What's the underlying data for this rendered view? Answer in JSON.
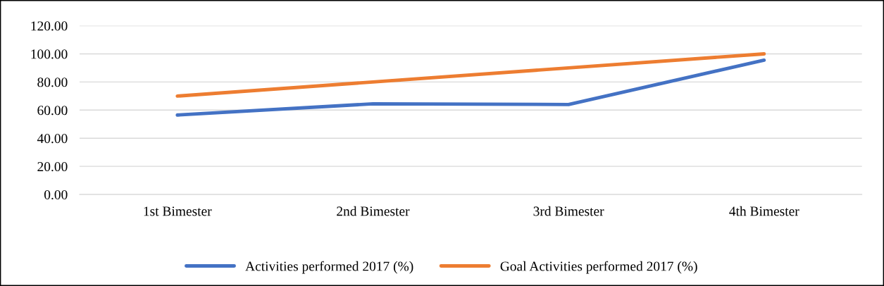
{
  "chart_data": {
    "type": "line",
    "categories": [
      "1st Bimester",
      "2nd Bimester",
      "3rd Bimester",
      "4th Bimester"
    ],
    "series": [
      {
        "name": "Activities performed 2017 (%)",
        "color": "#4472c4",
        "values": [
          56.5,
          64.5,
          64.0,
          95.5
        ]
      },
      {
        "name": "Goal Activities performed 2017 (%)",
        "color": "#ed7d31",
        "values": [
          70,
          80,
          90,
          100
        ]
      }
    ],
    "ylim": [
      0,
      120
    ],
    "yticks": [
      {
        "value": 0,
        "label": "0.00"
      },
      {
        "value": 20,
        "label": "20.00"
      },
      {
        "value": 40,
        "label": "40.00"
      },
      {
        "value": 60,
        "label": "60.00"
      },
      {
        "value": 80,
        "label": "80.00"
      },
      {
        "value": 100,
        "label": "100.00"
      },
      {
        "value": 120,
        "label": "120.00"
      }
    ],
    "grid": "y",
    "legend": "bottom",
    "marker": "none",
    "line_style": "solid"
  }
}
